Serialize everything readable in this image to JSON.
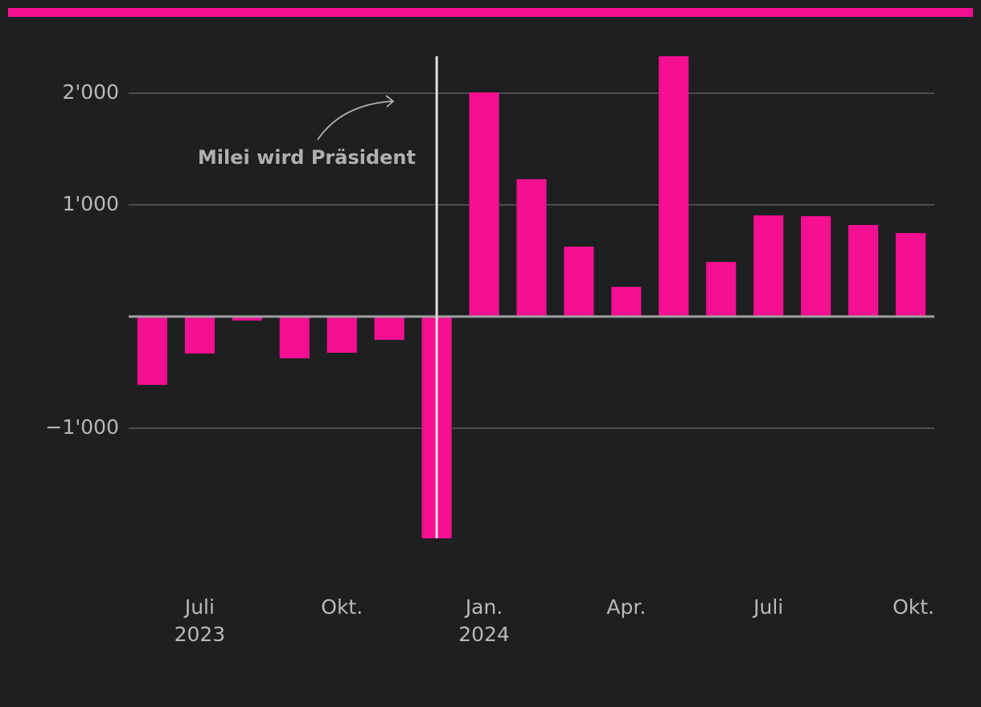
{
  "chart_data": {
    "type": "bar",
    "categories": [
      null,
      "Juli",
      null,
      null,
      "Okt.",
      null,
      null,
      "Jan.",
      null,
      null,
      "Apr.",
      null,
      null,
      "Juli",
      null,
      null,
      "Okt."
    ],
    "category_years": [
      null,
      "2023",
      null,
      null,
      null,
      null,
      null,
      "2024",
      null,
      null,
      null,
      null,
      null,
      null,
      null,
      null,
      null
    ],
    "values": [
      -612,
      -331,
      -36,
      -374,
      -324,
      -209,
      -1986,
      2007,
      1230,
      626,
      266,
      2331,
      489,
      906,
      899,
      820,
      748
    ],
    "color": "#f50f91",
    "ylim": [
      -2200,
      2400
    ],
    "yticks": [
      {
        "value": -1000,
        "label": "−1'000"
      },
      {
        "value": 1000,
        "label": "1'000"
      },
      {
        "value": 2000,
        "label": "2'000"
      }
    ],
    "grid": true,
    "annotation": "Milei wird Präsident"
  }
}
